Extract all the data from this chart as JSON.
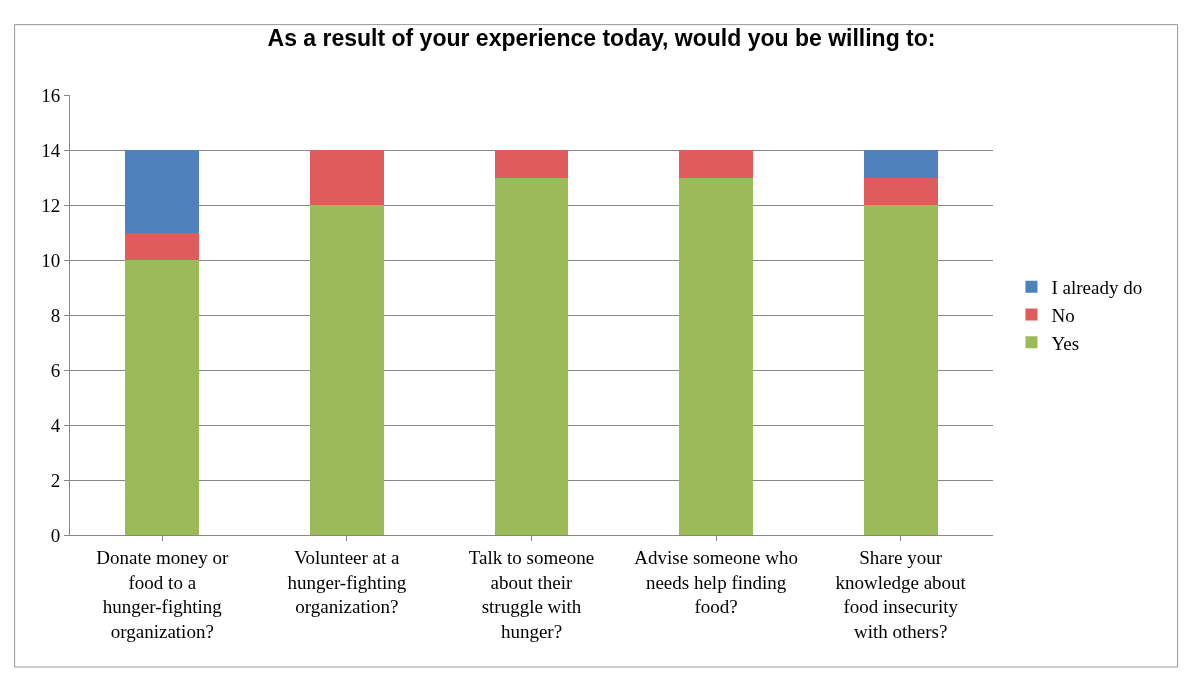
{
  "chart_data": {
    "type": "bar",
    "title": "As a result of your experience today, would you be willing to:",
    "categories": [
      "Donate money or food to a hunger-fighting organization?",
      "Volunteer at a hunger-fighting organization?",
      "Talk to someone about their struggle with hunger?",
      "Advise someone who needs help finding food?",
      "Share your knowledge about food insecurity with others?"
    ],
    "series": [
      {
        "name": "Yes",
        "color": "#9bbb59",
        "values": [
          10,
          12,
          13,
          13,
          12
        ]
      },
      {
        "name": "No",
        "color": "#e05c5c",
        "values": [
          1,
          2,
          1,
          1,
          1
        ]
      },
      {
        "name": "I already do",
        "color": "#4f81bd",
        "values": [
          3,
          0,
          0,
          0,
          1
        ]
      }
    ],
    "stacked": true,
    "ylim": [
      0,
      16
    ],
    "yticks": [
      0,
      2,
      4,
      6,
      8,
      10,
      12,
      14,
      16
    ],
    "grid": "y",
    "legend": "right"
  }
}
